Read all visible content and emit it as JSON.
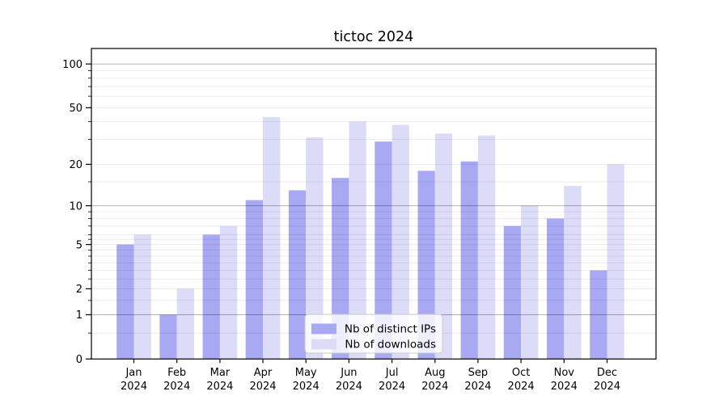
{
  "chart_data": {
    "type": "bar",
    "title": "tictoc 2024",
    "categories": [
      "Jan",
      "Feb",
      "Mar",
      "Apr",
      "May",
      "Jun",
      "Jul",
      "Aug",
      "Sep",
      "Oct",
      "Nov",
      "Dec"
    ],
    "x_tick_year": "2024",
    "series": [
      {
        "name": "Nb of distinct IPs",
        "color": "#a8a8f3",
        "values": [
          5,
          1,
          6,
          11,
          13,
          16,
          29,
          18,
          21,
          7,
          8,
          3
        ]
      },
      {
        "name": "Nb of downloads",
        "color": "#dcdcf8",
        "values": [
          6,
          2,
          7,
          43,
          31,
          40,
          38,
          33,
          32,
          10,
          14,
          20
        ]
      }
    ],
    "y_axis": {
      "scale": "symlog-log1p",
      "ticks": [
        0,
        1,
        2,
        5,
        10,
        20,
        50,
        100
      ],
      "minor_ticks": [
        0.5,
        1.5,
        2.5,
        3,
        3.5,
        4,
        4.5,
        5.5,
        6,
        7,
        8,
        9,
        15,
        30,
        40,
        60,
        70,
        80,
        90
      ],
      "decade_ticks": [
        1,
        10,
        100
      ],
      "max": 128
    },
    "xlabel": "",
    "ylabel": "",
    "grid": true,
    "legend": {
      "position": "lower-center"
    },
    "colors": {
      "decade_gridline": "rgba(0,0,0,0.30)",
      "minor_gridline": "rgba(0,0,0,0.08)",
      "spine": "#000000",
      "background": "#ffffff",
      "tick_label": "#000000",
      "legend_border": "#cccccc",
      "legend_background": "rgba(255,255,255,0.8)"
    }
  }
}
